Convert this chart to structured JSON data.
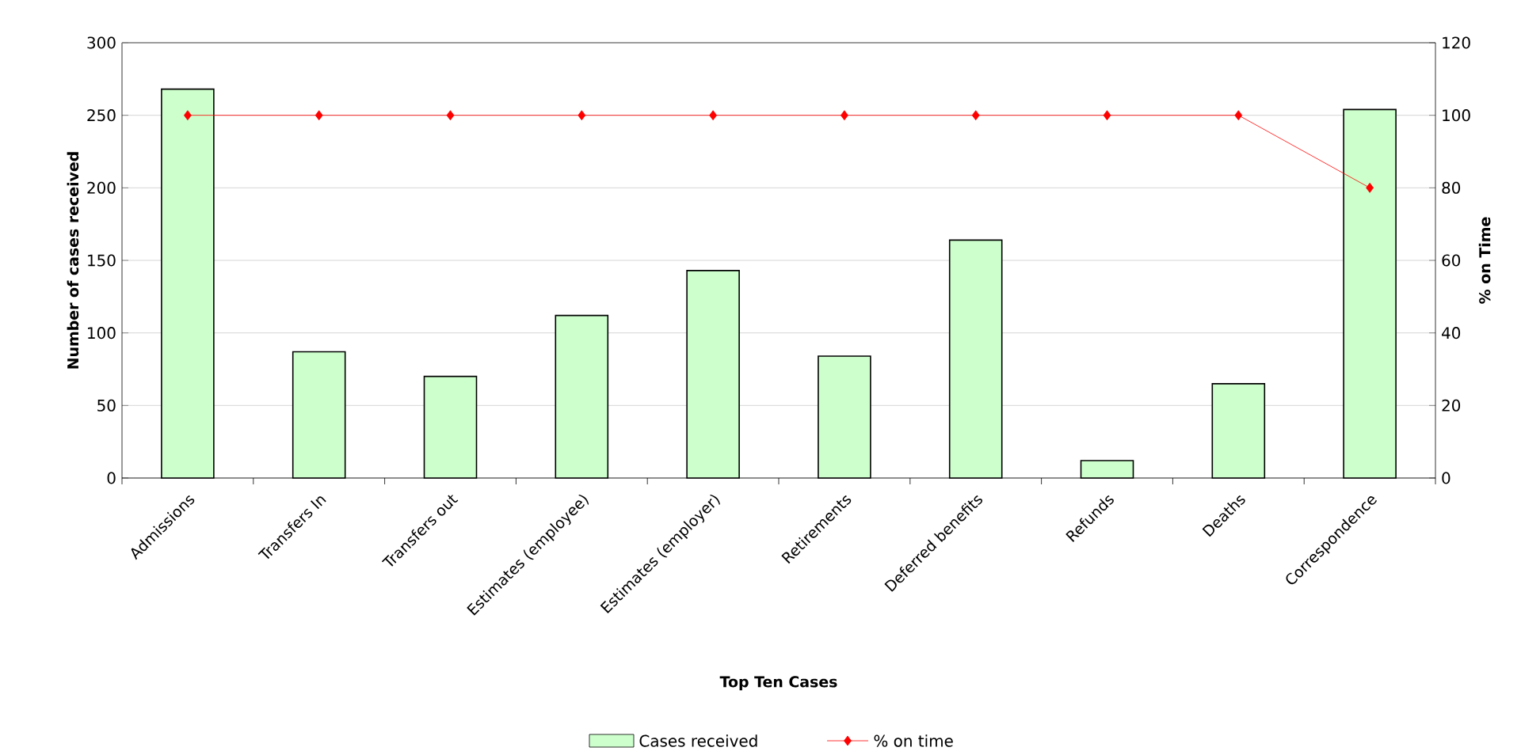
{
  "chart_data": {
    "type": "bar",
    "xlabel": "Top Ten Cases",
    "ylabel": "Number of cases received",
    "y2label": "% on Time",
    "categories": [
      "Admissions",
      "Transfers In",
      "Transfers out",
      "Estimates (employee)",
      "Estimates (employer)",
      "Retirements",
      "Deferred benefits",
      "Refunds",
      "Deaths",
      "Correspondence"
    ],
    "series": [
      {
        "name": "Cases received",
        "color": "#ccffcc",
        "values": [
          268,
          87,
          70,
          112,
          143,
          84,
          164,
          12,
          65,
          254
        ]
      },
      {
        "name": "% on time",
        "type": "line",
        "axis": "y2",
        "color": "#ff0000",
        "values": [
          100,
          100,
          100,
          100,
          100,
          100,
          100,
          100,
          100,
          80
        ]
      }
    ],
    "ylim": [
      0,
      300
    ],
    "yticks": [
      0,
      50,
      100,
      150,
      200,
      250,
      300
    ],
    "y2lim": [
      0,
      120
    ],
    "y2ticks": [
      0,
      20,
      40,
      60,
      80,
      100,
      120
    ],
    "grid": "y",
    "legend": "bottom",
    "marker": "diamond",
    "line_style": "solid"
  }
}
